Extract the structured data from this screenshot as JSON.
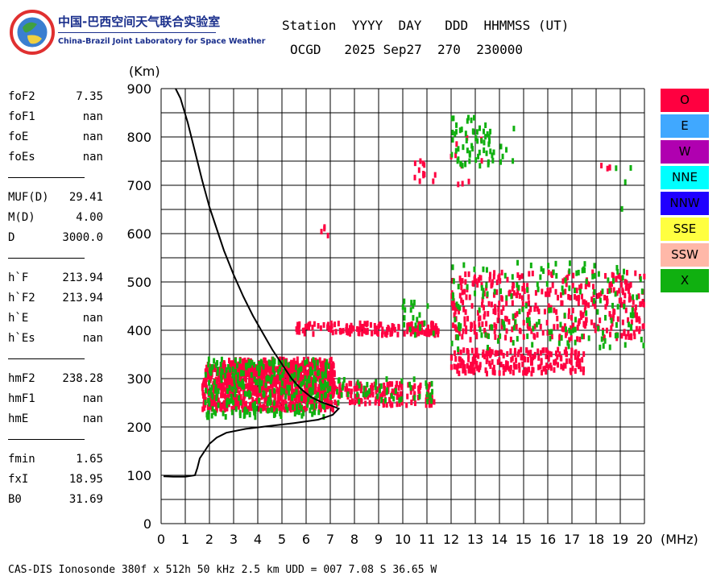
{
  "logo": {
    "cn": "中国-巴西空间天气联合实验室",
    "en": "China-Brazil Joint Laboratory for Space Weather"
  },
  "header": {
    "line1": "Station  YYYY  DAY   DDD  HHMMSS (UT)",
    "line2": "OCGD   2025 Sep27  270  230000"
  },
  "params": [
    [
      {
        "name": "foF2",
        "value": "7.35"
      },
      {
        "name": "foF1",
        "value": "nan"
      },
      {
        "name": "foE",
        "value": "nan"
      },
      {
        "name": "foEs",
        "value": "nan"
      }
    ],
    [
      {
        "name": "MUF(D)",
        "value": "29.41"
      },
      {
        "name": "M(D)",
        "value": "4.00"
      },
      {
        "name": "D",
        "value": "3000.0"
      }
    ],
    [
      {
        "name": "h`F",
        "value": "213.94"
      },
      {
        "name": "h`F2",
        "value": "213.94"
      },
      {
        "name": "h`E",
        "value": "nan"
      },
      {
        "name": "h`Es",
        "value": "nan"
      }
    ],
    [
      {
        "name": "hmF2",
        "value": "238.28"
      },
      {
        "name": "hmF1",
        "value": "nan"
      },
      {
        "name": "hmE",
        "value": "nan"
      }
    ],
    [
      {
        "name": "fmin",
        "value": "1.65"
      },
      {
        "name": "fxI",
        "value": "18.95"
      },
      {
        "name": "B0",
        "value": "31.69"
      }
    ]
  ],
  "legend": [
    {
      "label": "O",
      "color": "#ff0040",
      "text_color": "#000000"
    },
    {
      "label": "E",
      "color": "#40a8ff",
      "text_color": "#000000"
    },
    {
      "label": "W",
      "color": "#b000b0",
      "text_color": "#000000"
    },
    {
      "label": "NNE",
      "color": "#00ffff",
      "text_color": "#000000"
    },
    {
      "label": "NNW",
      "color": "#2000ff",
      "text_color": "#000000"
    },
    {
      "label": "SSE",
      "color": "#ffff40",
      "text_color": "#000000"
    },
    {
      "label": "SSW",
      "color": "#ffb8a8",
      "text_color": "#000000"
    },
    {
      "label": "X",
      "color": "#10b010",
      "text_color": "#000000"
    }
  ],
  "footer": "CAS-DIS Ionosonde 380f x 512h 50 kHz 2.5 km UDD = 007 7.08 S 36.65 W",
  "chart_data": {
    "type": "scatter",
    "xlabel": "(MHz)",
    "ylabel": "(Km)",
    "xlim": [
      0,
      20
    ],
    "ylim": [
      0,
      900
    ],
    "xticks": [
      0,
      1,
      2,
      3,
      4,
      5,
      6,
      7,
      8,
      9,
      10,
      11,
      12,
      13,
      14,
      15,
      16,
      17,
      18,
      19,
      20
    ],
    "yticks": [
      0,
      100,
      200,
      300,
      400,
      500,
      600,
      700,
      800,
      900
    ],
    "grid": true,
    "profile_curve": {
      "name": "electron density profile",
      "points": [
        [
          0.1,
          98
        ],
        [
          0.5,
          97
        ],
        [
          1.0,
          97
        ],
        [
          1.4,
          100
        ],
        [
          1.5,
          115
        ],
        [
          1.6,
          135
        ],
        [
          1.8,
          150
        ],
        [
          2.0,
          165
        ],
        [
          2.3,
          178
        ],
        [
          2.7,
          188
        ],
        [
          3.5,
          196
        ],
        [
          4.5,
          202
        ],
        [
          5.5,
          208
        ],
        [
          6.5,
          215
        ],
        [
          7.1,
          225
        ],
        [
          7.35,
          238
        ],
        [
          7.0,
          245
        ],
        [
          6.6,
          252
        ],
        [
          6.2,
          262
        ],
        [
          5.8,
          278
        ],
        [
          5.4,
          300
        ],
        [
          5.0,
          330
        ],
        [
          4.6,
          360
        ],
        [
          4.2,
          395
        ],
        [
          3.8,
          430
        ],
        [
          3.4,
          470
        ],
        [
          3.0,
          515
        ],
        [
          2.6,
          565
        ],
        [
          2.3,
          610
        ],
        [
          2.0,
          655
        ],
        [
          1.7,
          710
        ],
        [
          1.4,
          770
        ],
        [
          1.1,
          830
        ],
        [
          0.8,
          880
        ],
        [
          0.6,
          900
        ]
      ]
    },
    "echo_regions": [
      {
        "mode": "O",
        "xrange": [
          1.7,
          7.2
        ],
        "yrange": [
          235,
          330
        ],
        "density": 900
      },
      {
        "mode": "O",
        "xrange": [
          2.5,
          7.2
        ],
        "yrange": [
          280,
          340
        ],
        "density": 300
      },
      {
        "mode": "O",
        "xrange": [
          5.5,
          11.5
        ],
        "yrange": [
          390,
          415
        ],
        "density": 160
      },
      {
        "mode": "O",
        "xrange": [
          7.0,
          11.3
        ],
        "yrange": [
          245,
          290
        ],
        "density": 160
      },
      {
        "mode": "O",
        "xrange": [
          12.0,
          17.5
        ],
        "yrange": [
          310,
          360
        ],
        "density": 220
      },
      {
        "mode": "O",
        "xrange": [
          12.0,
          20.0
        ],
        "yrange": [
          380,
          520
        ],
        "density": 400
      },
      {
        "mode": "O",
        "xrange": [
          10.3,
          11.4
        ],
        "yrange": [
          700,
          770
        ],
        "density": 12
      },
      {
        "mode": "O",
        "xrange": [
          12.0,
          13.5
        ],
        "yrange": [
          700,
          820
        ],
        "density": 10
      },
      {
        "mode": "O",
        "xrange": [
          6.6,
          7.0
        ],
        "yrange": [
          590,
          615
        ],
        "density": 4
      },
      {
        "mode": "O",
        "xrange": [
          18.0,
          18.8
        ],
        "yrange": [
          730,
          745
        ],
        "density": 4
      },
      {
        "mode": "X",
        "xrange": [
          1.8,
          7.0
        ],
        "yrange": [
          220,
          340
        ],
        "density": 300
      },
      {
        "mode": "X",
        "xrange": [
          12.0,
          13.8
        ],
        "yrange": [
          740,
          840
        ],
        "density": 60
      },
      {
        "mode": "X",
        "xrange": [
          12.0,
          20.0
        ],
        "yrange": [
          360,
          540
        ],
        "density": 160
      },
      {
        "mode": "X",
        "xrange": [
          7.0,
          11.3
        ],
        "yrange": [
          250,
          300
        ],
        "density": 50
      },
      {
        "mode": "X",
        "xrange": [
          10.0,
          11.3
        ],
        "yrange": [
          390,
          460
        ],
        "density": 20
      },
      {
        "mode": "X",
        "xrange": [
          14.0,
          14.8
        ],
        "yrange": [
          740,
          820
        ],
        "density": 6
      },
      {
        "mode": "X",
        "xrange": [
          18.8,
          19.9
        ],
        "yrange": [
          630,
          740
        ],
        "density": 4
      }
    ]
  }
}
